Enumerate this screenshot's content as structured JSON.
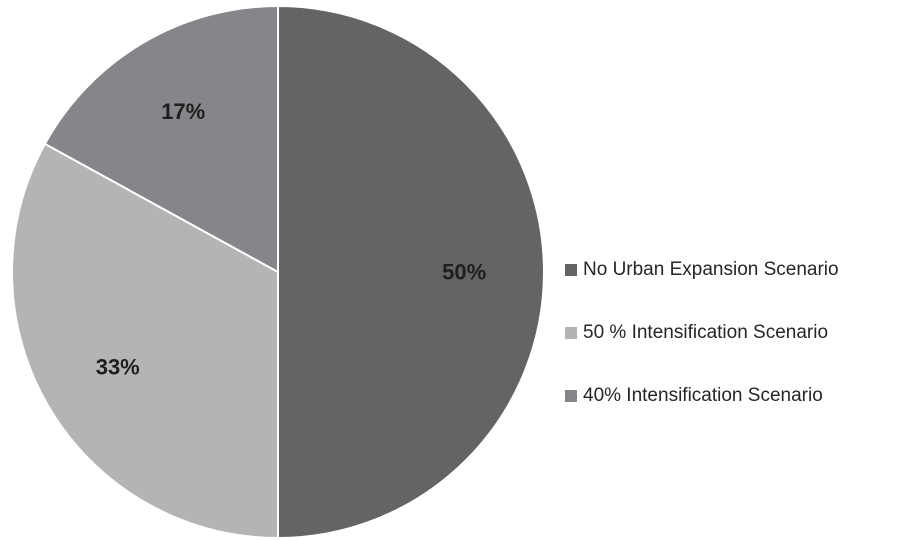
{
  "chart_data": {
    "type": "pie",
    "categories": [
      "No Urban Expansion Scenario",
      "50 % Intensification Scenario",
      "40% Intensification Scenario"
    ],
    "values": [
      50,
      33,
      17
    ],
    "labels": [
      "50%",
      "33%",
      "17%"
    ],
    "colors": [
      "#646466",
      "#b3b4b6",
      "#858689"
    ],
    "legend_position": "right",
    "title": "",
    "unit": "%"
  }
}
